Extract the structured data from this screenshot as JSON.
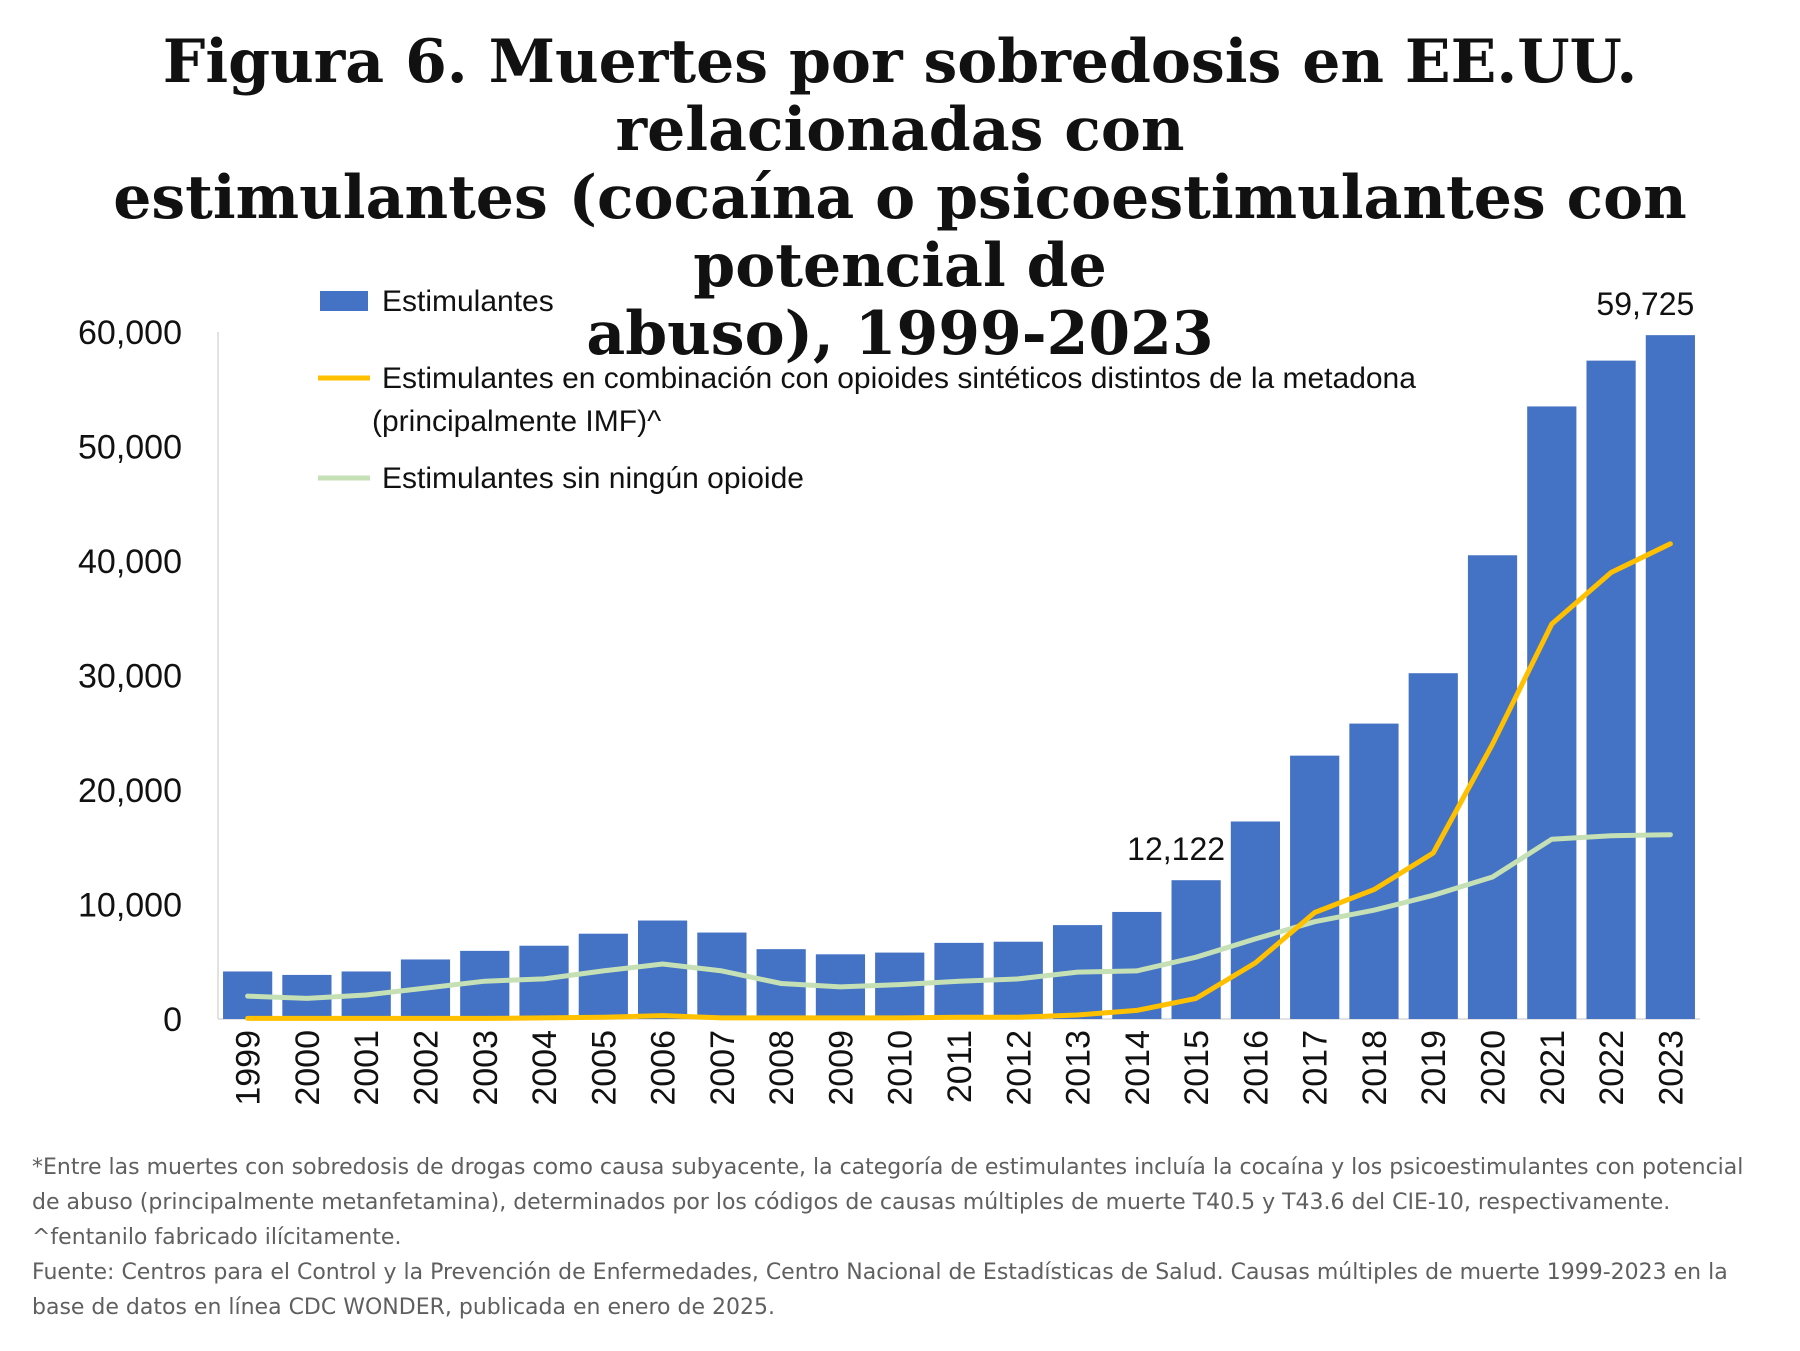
{
  "title_lines": [
    "Figura 6. Muertes por sobredosis en EE.UU. relacionadas con",
    "estimulantes (cocaína o psicoestimulantes con potencial de",
    "abuso), 1999-2023"
  ],
  "colors": {
    "bars": "#4472C4",
    "opioid_line": "#FFC000",
    "no_opioid_line": "#C5E0B4",
    "text": "#111111",
    "footnote": "#5f5f5f"
  },
  "chart_data": {
    "type": "bar",
    "title": "Figura 6. Muertes por sobredosis en EE.UU. relacionadas con estimulantes (cocaína o psicoestimulantes con potencial de abuso), 1999-2023",
    "xlabel": "",
    "ylabel": "",
    "ylim": [
      0,
      60000
    ],
    "yticks": [
      "0",
      "10,000",
      "20,000",
      "30,000",
      "40,000",
      "50,000",
      "60,000"
    ],
    "categories": [
      "1999",
      "2000",
      "2001",
      "2002",
      "2003",
      "2004",
      "2005",
      "2006",
      "2007",
      "2008",
      "2009",
      "2010",
      "2011",
      "2012",
      "2013",
      "2014",
      "2015",
      "2016",
      "2017",
      "2018",
      "2019",
      "2020",
      "2021",
      "2022",
      "2023"
    ],
    "grid": false,
    "legend": "top-left",
    "series": [
      {
        "name": "Estimulantes",
        "type": "bar",
        "values": [
          4150,
          3850,
          4150,
          5200,
          5950,
          6400,
          7450,
          8600,
          7550,
          6100,
          5650,
          5800,
          6650,
          6750,
          8200,
          9350,
          12122,
          17250,
          23000,
          25800,
          30200,
          40500,
          53500,
          57500,
          59725
        ]
      },
      {
        "name": "Estimulantes en combinación con opioides sintéticos distintos de la metadona",
        "name_line2": "(principalmente IMF)^",
        "type": "line",
        "values": [
          50,
          50,
          50,
          50,
          50,
          100,
          150,
          300,
          100,
          100,
          100,
          100,
          150,
          150,
          350,
          750,
          1800,
          4900,
          9300,
          11300,
          14500,
          24000,
          34500,
          39000,
          41500
        ]
      },
      {
        "name": "Estimulantes sin ningún opioide",
        "type": "line",
        "values": [
          2000,
          1800,
          2100,
          2700,
          3300,
          3500,
          4200,
          4800,
          4200,
          3100,
          2800,
          3000,
          3300,
          3500,
          4100,
          4200,
          5400,
          7000,
          8500,
          9500,
          10800,
          12400,
          15700,
          16000,
          16100
        ]
      }
    ],
    "annotations": [
      "12,122",
      "59,725"
    ]
  },
  "footnotes": [
    "*Entre las muertes con sobredosis de drogas como causa subyacente, la categoría de estimulantes incluía la cocaína y los psicoestimulantes con potencial de abuso (principalmente metanfetamina), determinados por los códigos de causas múltiples de muerte T40.5 y T43.6 del CIE-10, respectivamente. ^fentanilo fabricado ilícitamente.",
    "Fuente: Centros para el Control y la Prevención de Enfermedades, Centro Nacional de Estadísticas de Salud. Causas múltiples de muerte 1999-2023 en la base de datos en línea CDC WONDER, publicada en enero de 2025."
  ]
}
